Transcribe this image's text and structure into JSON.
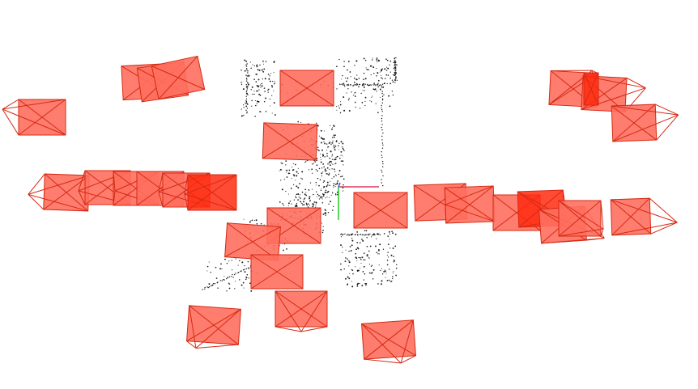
{
  "scene": {
    "background": "#ffffff",
    "camera_face_color": "#ff6f5e",
    "camera_face_dark_color": "#ff2a10",
    "camera_edge_color": "#d42a14",
    "point_color": "#1a1a1a",
    "axis_x_color": "#d83a5a",
    "axis_y_color": "#22cc22",
    "axis_z_color": "#3a5ad8",
    "camera_count": 30,
    "icons": {
      "camera": "camera-frustum-icon",
      "origin": "origin-axes-icon"
    }
  }
}
